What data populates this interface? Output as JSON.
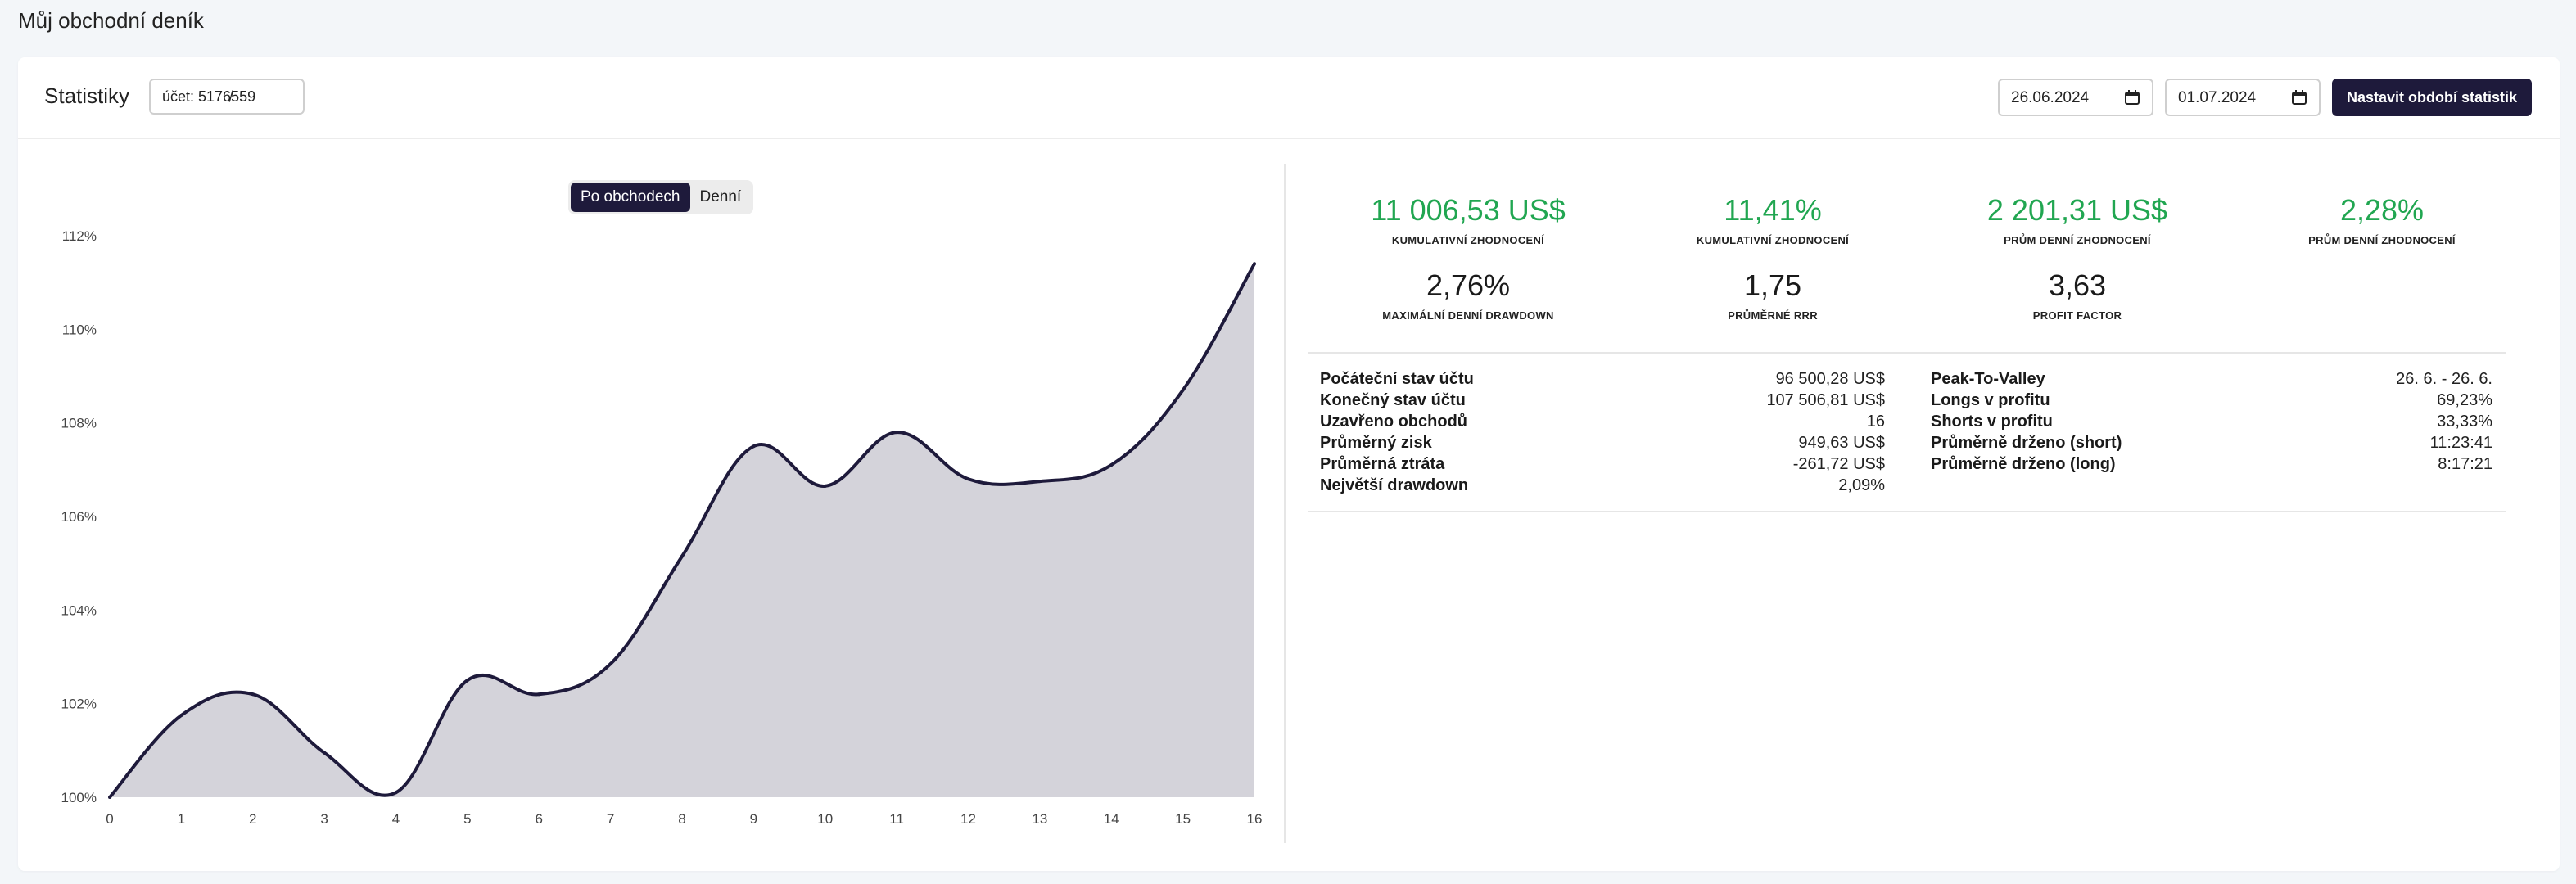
{
  "page": {
    "title": "Můj obchodní deník"
  },
  "header": {
    "title": "Statistiky",
    "account_label": "účet: 5176⁠̸559",
    "date_from": "26.06.2024",
    "date_to": "01.07.2024",
    "set_button": "Nastavit období statistik"
  },
  "toggle": {
    "by_trades": "Po obchodech",
    "daily": "Denní",
    "active": "by_trades"
  },
  "kpis": [
    {
      "value": "11 006,53 US$",
      "label": "KUMULATIVNÍ ZHODNOCENÍ",
      "color": "#21a651"
    },
    {
      "value": "11,41%",
      "label": "KUMULATIVNÍ ZHODNOCENÍ",
      "color": "#21a651"
    },
    {
      "value": "2 201,31 US$",
      "label": "PRŮM DENNÍ ZHODNOCENÍ",
      "color": "#21a651"
    },
    {
      "value": "2,28%",
      "label": "PRŮM DENNÍ ZHODNOCENÍ",
      "color": "#21a651"
    },
    {
      "value": "2,76%",
      "label": "MAXIMÁLNÍ DENNÍ DRAWDOWN",
      "color": "#1a1a1a"
    },
    {
      "value": "1,75",
      "label": "PRŮMĚRNÉ RRR",
      "color": "#1a1a1a"
    },
    {
      "value": "3,63",
      "label": "PROFIT FACTOR",
      "color": "#1a1a1a"
    }
  ],
  "stats_left": [
    {
      "label": "Počáteční stav účtu",
      "value": "96 500,28 US$"
    },
    {
      "label": "Konečný stav účtu",
      "value": "107 506,81 US$"
    },
    {
      "label": "Uzavřeno obchodů",
      "value": "16"
    },
    {
      "label": "Průměrný zisk",
      "value": "949,63 US$"
    },
    {
      "label": "Průměrná ztráta",
      "value": "-261,72 US$"
    },
    {
      "label": "Největší drawdown",
      "value": "2,09%"
    }
  ],
  "stats_right": [
    {
      "label": "Peak-To-Valley",
      "value": "26. 6. - 26. 6."
    },
    {
      "label": "Longs v profitu",
      "value": "69,23%"
    },
    {
      "label": "Shorts v profitu",
      "value": "33,33%"
    },
    {
      "label": "Průměrně drženo (short)",
      "value": "11:23:41"
    },
    {
      "label": "Průměrně drženo (long)",
      "value": "8:17:21"
    }
  ],
  "colors": {
    "accent": "#1e1a3b",
    "positive": "#21a651",
    "area_fill": "#d4d3da",
    "line": "#1e1a3b"
  },
  "chart_data": {
    "type": "area",
    "x": [
      0,
      1,
      2,
      3,
      4,
      5,
      6,
      7,
      8,
      9,
      10,
      11,
      12,
      13,
      14,
      15,
      16
    ],
    "y": [
      100.0,
      101.75,
      102.2,
      100.95,
      100.1,
      102.5,
      102.2,
      102.85,
      105.15,
      107.5,
      106.65,
      107.8,
      106.8,
      106.75,
      107.1,
      108.7,
      111.4
    ],
    "x_ticks": [
      "0",
      "1",
      "2",
      "3",
      "4",
      "5",
      "6",
      "7",
      "8",
      "9",
      "10",
      "11",
      "12",
      "13",
      "14",
      "15",
      "16"
    ],
    "y_ticks": [
      "100%",
      "102%",
      "104%",
      "106%",
      "108%",
      "110%",
      "112%"
    ],
    "y_tick_values": [
      100,
      102,
      104,
      106,
      108,
      110,
      112
    ],
    "ylim": [
      100,
      112
    ],
    "xlim": [
      0,
      16
    ],
    "grid": false
  }
}
